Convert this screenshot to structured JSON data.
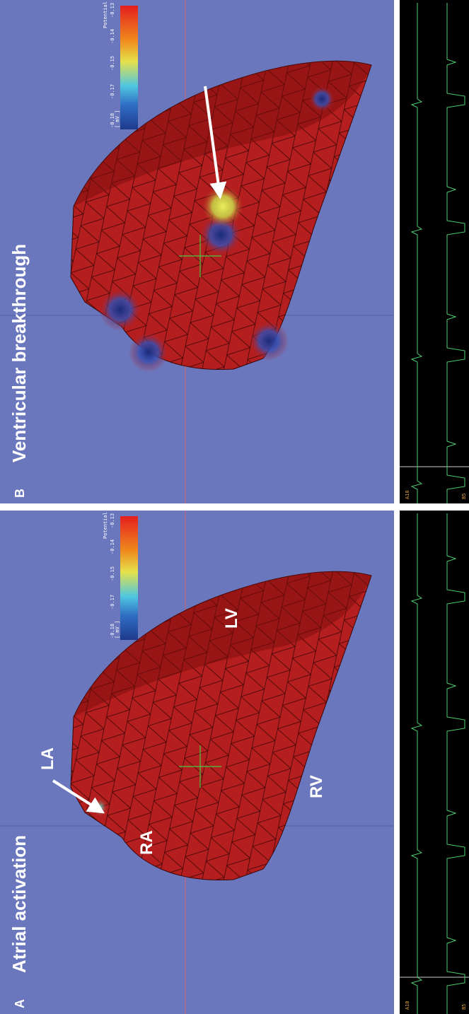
{
  "panels": [
    {
      "label": "A",
      "title": "Atrial activation",
      "annotations": [
        "LA",
        "RA",
        "LV",
        "RV"
      ],
      "colorbar": {
        "title": "Potential",
        "ticks": [
          "-0.13",
          "-0.14",
          "-0.15",
          "-0.17",
          "-0.18"
        ],
        "unit": "[ mV ]"
      },
      "traces": [
        "A10",
        "B5"
      ]
    },
    {
      "label": "B",
      "title": "Ventricular breakthrough",
      "colorbar": {
        "title": "Potential",
        "ticks": [
          "-0.13",
          "-0.14",
          "-0.15",
          "-0.17",
          "-0.18"
        ],
        "unit": "[ mV ]"
      },
      "traces": [
        "A10",
        "B5"
      ]
    }
  ]
}
